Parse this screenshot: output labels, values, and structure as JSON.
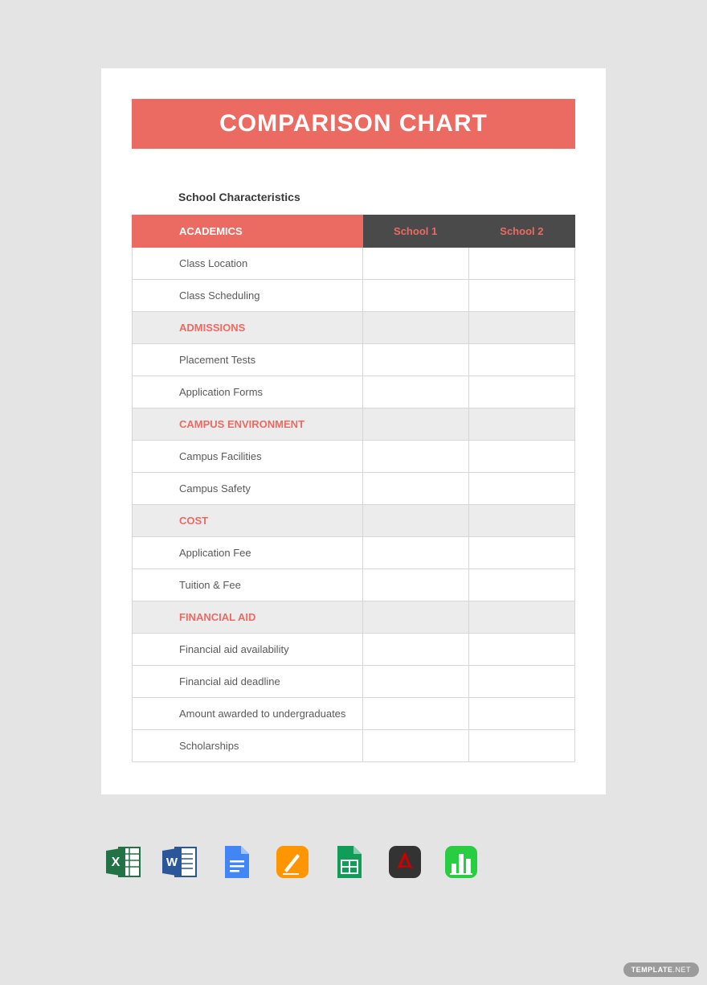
{
  "colors": {
    "page_bg": "#e4e4e4",
    "card_bg": "#ffffff",
    "accent": "#eb6b62",
    "header_dark": "#4a4a4a",
    "section_bg": "#ececec",
    "border": "#d6d6d6",
    "text": "#5a5a5a"
  },
  "title": "COMPARISON CHART",
  "subtitle": "School Characteristics",
  "columns": {
    "main": "ACADEMICS",
    "school1": "School 1",
    "school2": "School 2"
  },
  "rows": [
    {
      "type": "item",
      "label": "Class Location",
      "s1": "",
      "s2": ""
    },
    {
      "type": "item",
      "label": "Class Scheduling",
      "s1": "",
      "s2": ""
    },
    {
      "type": "section",
      "label": "ADMISSIONS",
      "s1": "",
      "s2": ""
    },
    {
      "type": "item",
      "label": "Placement Tests",
      "s1": "",
      "s2": ""
    },
    {
      "type": "item",
      "label": "Application Forms",
      "s1": "",
      "s2": ""
    },
    {
      "type": "section",
      "label": "CAMPUS ENVIRONMENT",
      "s1": "",
      "s2": ""
    },
    {
      "type": "item",
      "label": "Campus Facilities",
      "s1": "",
      "s2": ""
    },
    {
      "type": "item",
      "label": "Campus Safety",
      "s1": "",
      "s2": ""
    },
    {
      "type": "section",
      "label": "COST",
      "s1": "",
      "s2": ""
    },
    {
      "type": "item",
      "label": "Application Fee",
      "s1": "",
      "s2": ""
    },
    {
      "type": "item",
      "label": "Tuition & Fee",
      "s1": "",
      "s2": ""
    },
    {
      "type": "section",
      "label": "FINANCIAL AID",
      "s1": "",
      "s2": ""
    },
    {
      "type": "item",
      "label": "Financial aid availability",
      "s1": "",
      "s2": ""
    },
    {
      "type": "item",
      "label": "Financial aid deadline",
      "s1": "",
      "s2": ""
    },
    {
      "type": "item",
      "label": "Amount awarded to undergraduates",
      "s1": "",
      "s2": ""
    },
    {
      "type": "item",
      "label": "Scholarships",
      "s1": "",
      "s2": ""
    }
  ],
  "icons": [
    {
      "name": "excel",
      "fill1": "#217346",
      "fill2": "#ffffff"
    },
    {
      "name": "word",
      "fill1": "#2b579a",
      "fill2": "#ffffff"
    },
    {
      "name": "google-docs",
      "fill1": "#4285f4",
      "fill2": "#ffffff"
    },
    {
      "name": "pages",
      "fill1": "#ff9500",
      "fill2": "#ffffff"
    },
    {
      "name": "google-sheets",
      "fill1": "#0f9d58",
      "fill2": "#ffffff"
    },
    {
      "name": "pdf",
      "fill1": "#333333",
      "fill2": "#cc0000"
    },
    {
      "name": "numbers",
      "fill1": "#28cd41",
      "fill2": "#ffffff"
    }
  ],
  "badge": {
    "prefix": "TEMPLATE",
    "suffix": ".NET"
  }
}
